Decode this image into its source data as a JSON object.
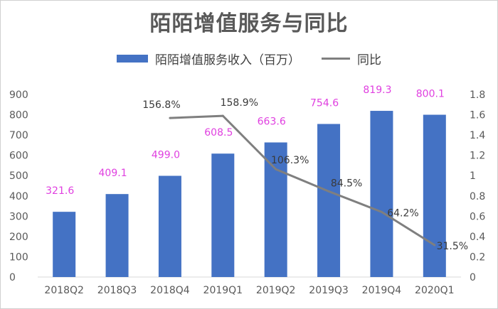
{
  "chart_data": {
    "type": "bar",
    "title": "陌陌增值服务与同比",
    "categories": [
      "2018Q2",
      "2018Q3",
      "2018Q4",
      "2019Q1",
      "2019Q2",
      "2019Q3",
      "2019Q4",
      "2020Q1"
    ],
    "series": [
      {
        "name": "陌陌增值服务收入（百万）",
        "type": "bar",
        "axis": "left",
        "values": [
          321.6,
          409.1,
          499.0,
          608.5,
          663.6,
          754.6,
          819.3,
          800.1
        ],
        "labels": [
          "321.6",
          "409.1",
          "499.0",
          "608.5",
          "663.6",
          "754.6",
          "819.3",
          "800.1"
        ]
      },
      {
        "name": "同比",
        "type": "line",
        "axis": "right",
        "values": [
          null,
          null,
          1.568,
          1.589,
          1.063,
          0.845,
          0.642,
          0.315
        ],
        "labels": [
          "",
          "",
          "156.8%",
          "158.9%",
          "106.3%",
          "84.5%",
          "64.2%",
          "31.5%"
        ]
      }
    ],
    "y_left": {
      "min": 0,
      "max": 900,
      "ticks": [
        "0",
        "100",
        "200",
        "300",
        "400",
        "500",
        "600",
        "700",
        "800",
        "900"
      ]
    },
    "y_right": {
      "min": 0,
      "max": 1.8,
      "ticks": [
        "0",
        "0.2",
        "0.4",
        "0.6",
        "0.8",
        "1",
        "1.2",
        "1.4",
        "1.6",
        "1.8"
      ]
    },
    "legend_position": "top",
    "grid": false,
    "colors": {
      "bar": "#4472c4",
      "line": "#7f7f7f",
      "bar_label": "#e040e0"
    }
  }
}
